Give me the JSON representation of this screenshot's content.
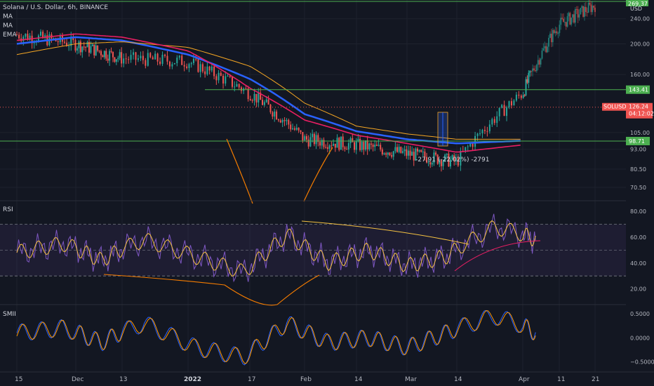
{
  "header": {
    "symbol_line": "Solana / U.S. Dollar, 6h, BINANCE",
    "indicators": [
      "MA",
      "MA",
      "EMA"
    ]
  },
  "price_axis": {
    "currency": "USD",
    "top_price": "269.37",
    "ticks": [
      240.0,
      200.0,
      160.0,
      105.0,
      93.0,
      80.5,
      70.5
    ],
    "tick_labels": [
      "240.00",
      "200.00",
      "160.00",
      "105.00",
      "93.00",
      "80.50",
      "70.50"
    ]
  },
  "current_price": {
    "symbol": "SOLUSD",
    "value": "126.24",
    "countdown": "04:12:02",
    "price": 126.24
  },
  "levels": [
    {
      "label": "143.41",
      "price": 143.41
    },
    {
      "label": "98.71",
      "price": 98.71
    }
  ],
  "measure": {
    "label": "-27.91 (-22.02%) -2791"
  },
  "rsi": {
    "title": "RSI",
    "ticks": [
      80,
      60,
      40,
      20
    ],
    "tick_labels": [
      "80.00",
      "60.00",
      "40.00",
      "20.00"
    ],
    "upper_band": 70,
    "lower_band": 30
  },
  "smii": {
    "title": "SMII",
    "ticks": [
      0.5,
      0,
      -0.5
    ],
    "tick_labels": [
      "0.5000",
      "0.0000",
      "−0.5000"
    ]
  },
  "time_axis": {
    "labels": [
      "15",
      "Dec",
      "13",
      "2022",
      "17",
      "Feb",
      "14",
      "Mar",
      "14",
      "Apr",
      "11",
      "21"
    ]
  },
  "colors": {
    "background": "#131722",
    "candle_up": "#26a69a",
    "candle_down": "#ef5350",
    "ma_blue": "#2962ff",
    "ma_orange": "#f5a623",
    "ema_pink": "#e91e63",
    "level_green": "#4caf50",
    "rsi_line": "#7e57c2",
    "rsi_ma": "#f5c242",
    "smii_blue": "#2962ff",
    "smii_orange": "#ff9800"
  },
  "chart_data": {
    "type": "line",
    "title": "Solana / U.S. Dollar, 6h, BINANCE",
    "xlabel": "",
    "ylabel": "",
    "scale": "log",
    "ylim": [
      64,
      275
    ],
    "x": [
      "Nov 15",
      "Dec 1",
      "Dec 13",
      "Jan 1",
      "Jan 17",
      "Feb 1",
      "Feb 14",
      "Mar 1",
      "Mar 14",
      "Apr 1",
      "Apr 11",
      "Apr 21"
    ],
    "series": [
      {
        "name": "price",
        "values": [
          214,
          200,
          180,
          176,
          140,
          100,
          96,
          90,
          85,
          140,
          230,
          265
        ]
      },
      {
        "name": "MA",
        "values": [
          200,
          210,
          205,
          185,
          155,
          120,
          106,
          100,
          97,
          99,
          null,
          null
        ]
      },
      {
        "name": "MA",
        "values": [
          185,
          200,
          203,
          195,
          170,
          130,
          110,
          104,
          100,
          100,
          null,
          null
        ]
      },
      {
        "name": "EMA",
        "values": [
          205,
          215,
          210,
          190,
          145,
          115,
          103,
          97,
          91,
          96,
          null,
          null
        ]
      }
    ],
    "rsi_values": [
      48,
      55,
      42,
      58,
      45,
      33,
      62,
      40,
      50,
      38,
      45,
      68,
      58
    ],
    "smii_values": [
      0.1,
      0.2,
      -0.1,
      0.3,
      -0.2,
      -0.4,
      0.3,
      -0.1,
      0.0,
      -0.2,
      0.1,
      0.45,
      0.1
    ]
  }
}
